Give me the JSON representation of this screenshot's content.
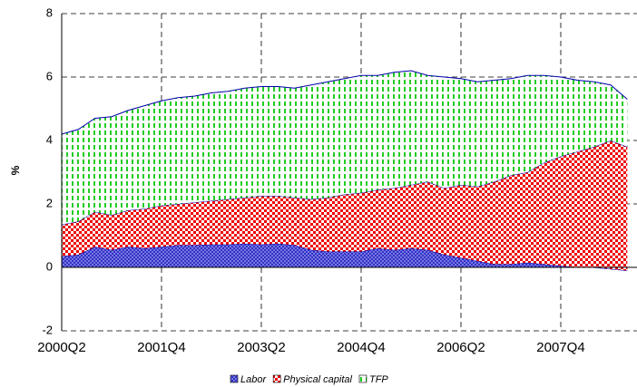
{
  "chart_data": {
    "type": "stacked_area",
    "y_label": "%",
    "categories": [
      "2000Q2",
      null,
      null,
      null,
      null,
      null,
      "2001Q4",
      null,
      null,
      null,
      null,
      null,
      "2003Q2",
      null,
      null,
      null,
      null,
      null,
      "2004Q4",
      null,
      null,
      null,
      null,
      null,
      "2006Q2",
      null,
      null,
      null,
      null,
      null,
      "2007Q4",
      null,
      null,
      null,
      null
    ],
    "series": [
      {
        "name": "Labor",
        "color": "#3333cc",
        "values": [
          0.35,
          0.4,
          0.65,
          0.55,
          0.65,
          0.6,
          0.65,
          0.7,
          0.7,
          0.72,
          0.72,
          0.75,
          0.72,
          0.75,
          0.7,
          0.55,
          0.5,
          0.5,
          0.5,
          0.6,
          0.55,
          0.6,
          0.55,
          0.4,
          0.3,
          0.2,
          0.1,
          0.1,
          0.15,
          0.1,
          0.05,
          0.0,
          0.0,
          -0.05,
          -0.1
        ]
      },
      {
        "name": "Physical capital",
        "color": "#ff0000",
        "values": [
          1.0,
          1.05,
          1.1,
          1.1,
          1.15,
          1.25,
          1.3,
          1.3,
          1.35,
          1.38,
          1.43,
          1.45,
          1.53,
          1.5,
          1.5,
          1.6,
          1.7,
          1.8,
          1.85,
          1.85,
          1.95,
          2.0,
          2.15,
          2.1,
          2.3,
          2.35,
          2.6,
          2.8,
          2.85,
          3.2,
          3.45,
          3.65,
          3.8,
          4.05,
          3.9
        ]
      },
      {
        "name": "TFP",
        "color": "#33cc33",
        "values": [
          2.85,
          2.9,
          2.95,
          3.1,
          3.15,
          3.25,
          3.3,
          3.35,
          3.35,
          3.4,
          3.4,
          3.45,
          3.45,
          3.45,
          3.45,
          3.6,
          3.65,
          3.65,
          3.7,
          3.6,
          3.65,
          3.6,
          3.35,
          3.5,
          3.35,
          3.3,
          3.2,
          3.05,
          3.05,
          2.75,
          2.5,
          2.25,
          2.05,
          1.75,
          1.5
        ]
      }
    ],
    "ylim": [
      -2,
      8
    ],
    "yticks": [
      -2,
      0,
      2,
      4,
      6,
      8
    ],
    "grid": true,
    "legend": "bottom"
  }
}
